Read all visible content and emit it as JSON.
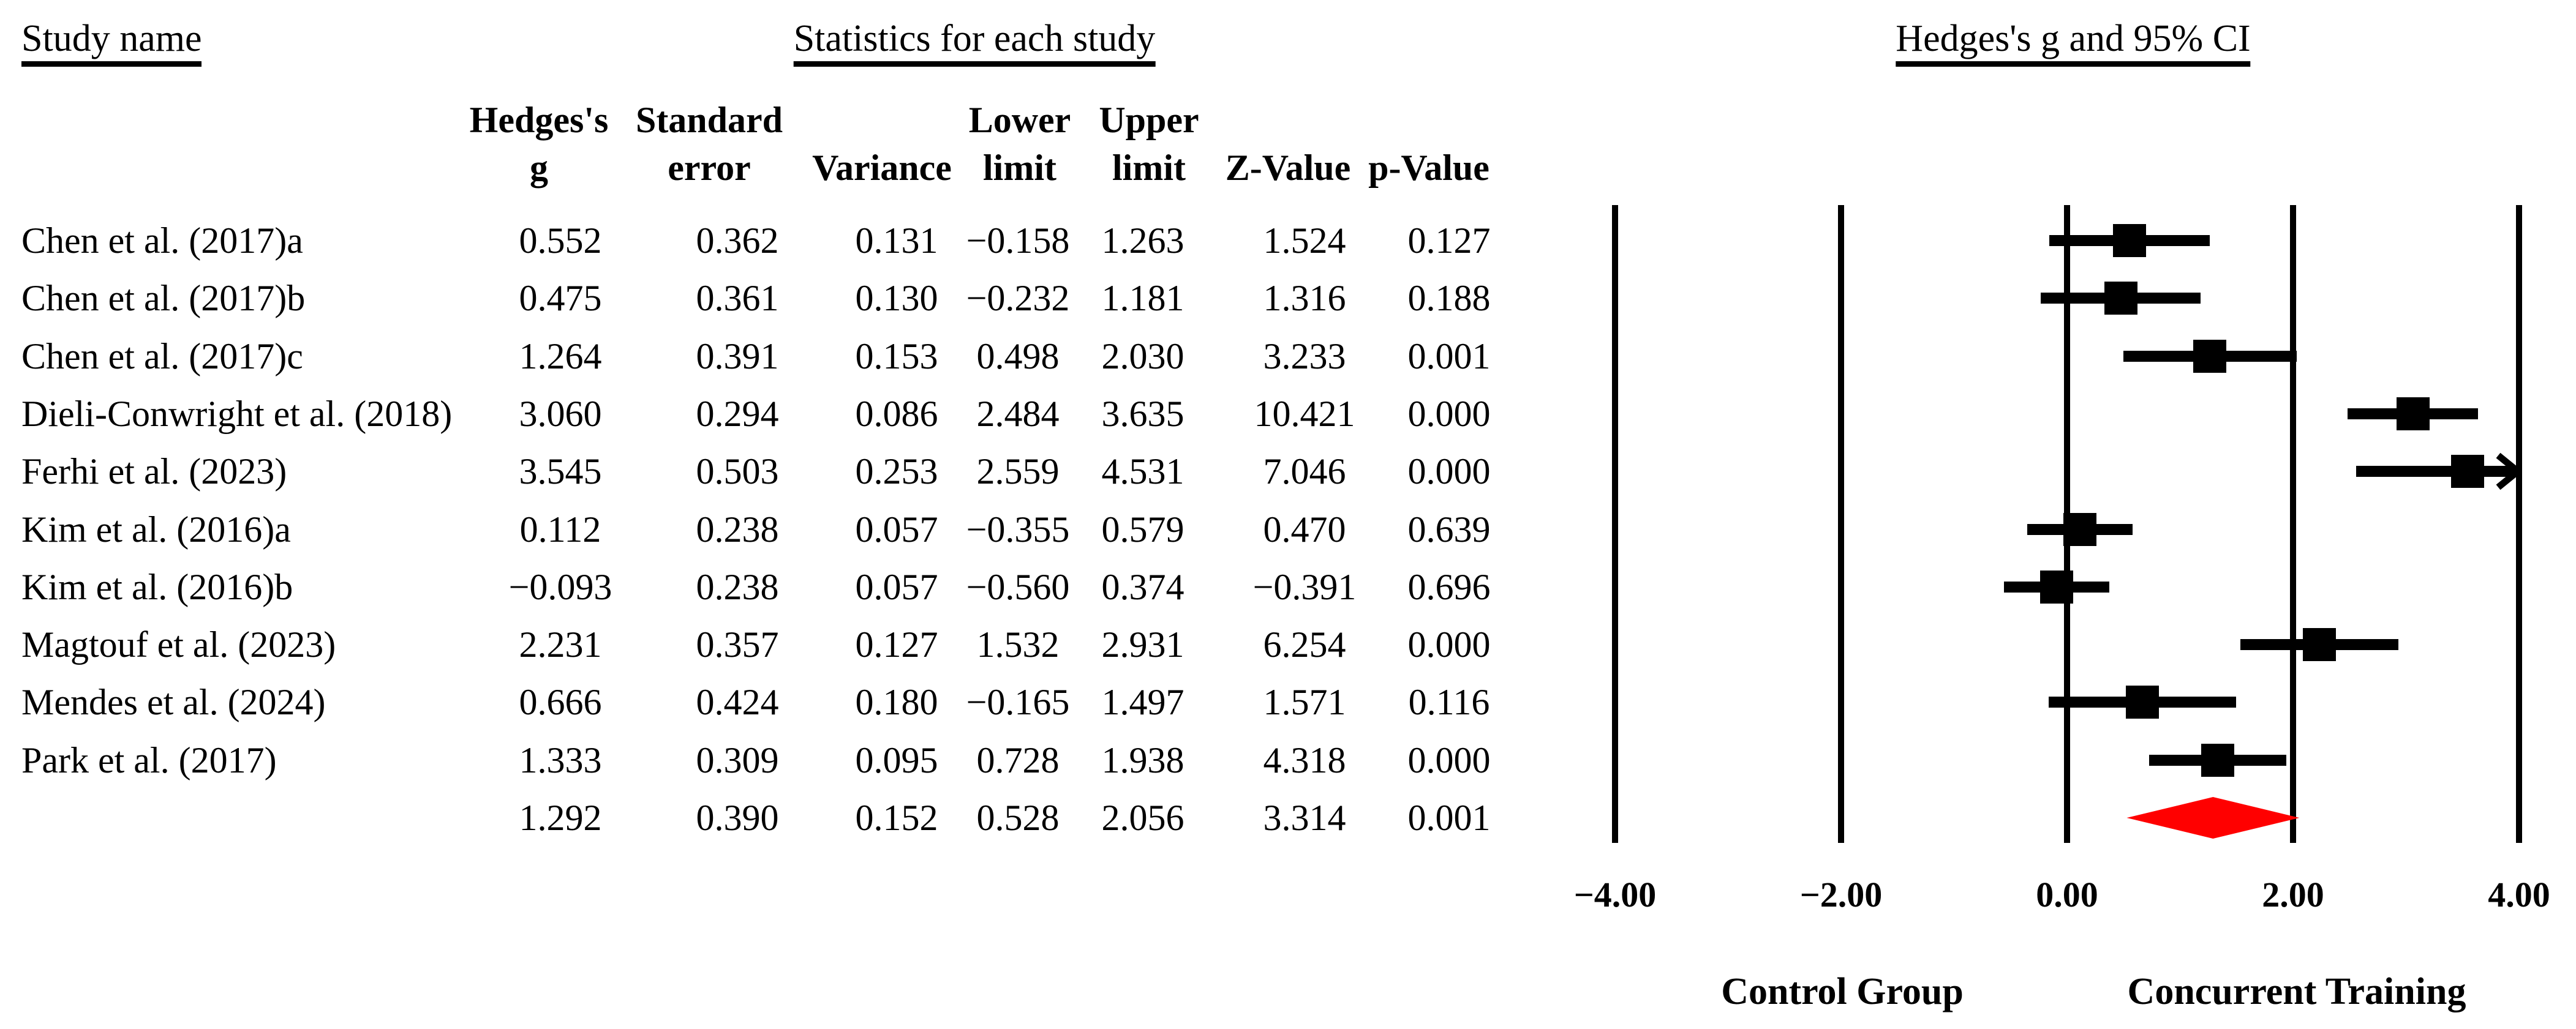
{
  "titles": {
    "study_name": "Study name",
    "statistics": "Statistics for each study",
    "ci": "Hedges's g and 95% CI"
  },
  "table": {
    "header_line1": [
      "Hedges's",
      "Standard",
      "",
      "Lower",
      "Upper",
      "",
      ""
    ],
    "header_line2": [
      "g",
      "error",
      "Variance",
      "limit",
      "limit",
      "Z-Value",
      "p-Value"
    ],
    "rows": [
      {
        "study": "Chen et al. (2017)a",
        "values": [
          "0.552",
          "0.362",
          "0.131",
          "−0.158",
          "1.263",
          "1.524",
          "0.127"
        ]
      },
      {
        "study": "Chen et al. (2017)b",
        "values": [
          "0.475",
          "0.361",
          "0.130",
          "−0.232",
          "1.181",
          "1.316",
          "0.188"
        ]
      },
      {
        "study": "Chen et al. (2017)c",
        "values": [
          "1.264",
          "0.391",
          "0.153",
          "0.498",
          "2.030",
          "3.233",
          "0.001"
        ]
      },
      {
        "study": "Dieli-Conwright et al. (2018)",
        "values": [
          "3.060",
          "0.294",
          "0.086",
          "2.484",
          "3.635",
          "10.421",
          "0.000"
        ]
      },
      {
        "study": "Ferhi et al. (2023)",
        "values": [
          "3.545",
          "0.503",
          "0.253",
          "2.559",
          "4.531",
          "7.046",
          "0.000"
        ]
      },
      {
        "study": "Kim et al. (2016)a",
        "values": [
          "0.112",
          "0.238",
          "0.057",
          "−0.355",
          "0.579",
          "0.470",
          "0.639"
        ]
      },
      {
        "study": "Kim et al. (2016)b",
        "values": [
          "−0.093",
          "0.238",
          "0.057",
          "−0.560",
          "0.374",
          "−0.391",
          "0.696"
        ]
      },
      {
        "study": "Magtouf et al. (2023)",
        "values": [
          "2.231",
          "0.357",
          "0.127",
          "1.532",
          "2.931",
          "6.254",
          "0.000"
        ]
      },
      {
        "study": "Mendes et al. (2024)",
        "values": [
          "0.666",
          "0.424",
          "0.180",
          "−0.165",
          "1.497",
          "1.571",
          "0.116"
        ]
      },
      {
        "study": "Park et al. (2017)",
        "values": [
          "1.333",
          "0.309",
          "0.095",
          "0.728",
          "1.938",
          "4.318",
          "0.000"
        ]
      },
      {
        "study": "",
        "values": [
          "1.292",
          "0.390",
          "0.152",
          "0.528",
          "2.056",
          "3.314",
          "0.001"
        ]
      }
    ]
  },
  "chart_data": {
    "type": "forest",
    "title": "Hedges's g and 95% CI",
    "xlim": [
      -4,
      4
    ],
    "tick_values": [
      -4,
      -2,
      0,
      2,
      4
    ],
    "tick_labels": [
      "−4.00",
      "−2.00",
      "0.00",
      "2.00",
      "4.00"
    ],
    "grid": "vertical-lines-only",
    "left_label": "Control Group",
    "right_label": "Concurrent Training",
    "marker_color": "#000000",
    "summary_color": "#ff0000",
    "studies": [
      {
        "name": "Chen et al. (2017)a",
        "g": 0.552,
        "lower": -0.158,
        "upper": 1.263
      },
      {
        "name": "Chen et al. (2017)b",
        "g": 0.475,
        "lower": -0.232,
        "upper": 1.181
      },
      {
        "name": "Chen et al. (2017)c",
        "g": 1.264,
        "lower": 0.498,
        "upper": 2.03
      },
      {
        "name": "Dieli-Conwright et al. (2018)",
        "g": 3.06,
        "lower": 2.484,
        "upper": 3.635
      },
      {
        "name": "Ferhi et al. (2023)",
        "g": 3.545,
        "lower": 2.559,
        "upper": 4.531
      },
      {
        "name": "Kim et al. (2016)a",
        "g": 0.112,
        "lower": -0.355,
        "upper": 0.579
      },
      {
        "name": "Kim et al. (2016)b",
        "g": -0.093,
        "lower": -0.56,
        "upper": 0.374
      },
      {
        "name": "Magtouf et al. (2023)",
        "g": 2.231,
        "lower": 1.532,
        "upper": 2.931
      },
      {
        "name": "Mendes et al. (2024)",
        "g": 0.666,
        "lower": -0.165,
        "upper": 1.497
      },
      {
        "name": "Park et al. (2017)",
        "g": 1.333,
        "lower": 0.728,
        "upper": 1.938
      }
    ],
    "summary": {
      "g": 1.292,
      "lower": 0.528,
      "upper": 2.056
    }
  }
}
